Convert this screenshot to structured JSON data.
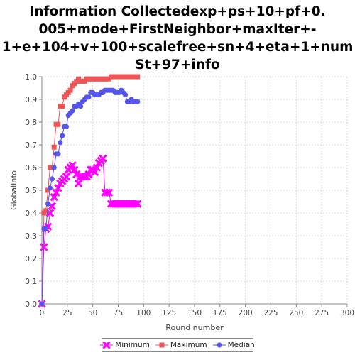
{
  "chart_data": {
    "type": "line",
    "title": "Information Collectedexp+ps+10+pf+0.\n005+mode+FirstNeighbor+maxIter+-\n1+e+104+v+100+scalefree+sn+4+eta+1+num\nSt+97+info",
    "xlabel": "Round number",
    "ylabel": "GlobalInfo",
    "xlim": [
      0,
      300
    ],
    "ylim": [
      0,
      1.0
    ],
    "xticks": [
      "0",
      "25",
      "50",
      "75",
      "100",
      "125",
      "150",
      "175",
      "200",
      "225",
      "250",
      "275",
      "300"
    ],
    "yticks": [
      "0,0",
      "0,1",
      "0,2",
      "0,3",
      "0,4",
      "0,5",
      "0,6",
      "0,7",
      "0,8",
      "0,9",
      "1,0"
    ],
    "grid": true,
    "legend_position": "bottom",
    "series": [
      {
        "name": "Minimum",
        "color": "#ff00ff",
        "marker": "x",
        "x": [
          0,
          2,
          4,
          6,
          8,
          10,
          12,
          14,
          16,
          18,
          20,
          22,
          24,
          26,
          28,
          30,
          32,
          34,
          36,
          38,
          40,
          42,
          44,
          46,
          48,
          50,
          52,
          54,
          56,
          58,
          60,
          62,
          64,
          66,
          68,
          70,
          72,
          74,
          76,
          78,
          80,
          82,
          84,
          86,
          88,
          90,
          92,
          94
        ],
        "y": [
          0,
          0.25,
          0.33,
          0.34,
          0.4,
          0.43,
          0.47,
          0.49,
          0.51,
          0.53,
          0.54,
          0.55,
          0.56,
          0.59,
          0.6,
          0.61,
          0.59,
          0.57,
          0.53,
          0.56,
          0.56,
          0.56,
          0.56,
          0.57,
          0.59,
          0.59,
          0.58,
          0.6,
          0.62,
          0.63,
          0.64,
          0.49,
          0.49,
          0.49,
          0.44,
          0.44,
          0.44,
          0.44,
          0.44,
          0.44,
          0.44,
          0.44,
          0.44,
          0.44,
          0.44,
          0.44,
          0.44,
          0.44
        ]
      },
      {
        "name": "Maximum",
        "color": "#ee5555",
        "marker": "square",
        "x": [
          0,
          2,
          4,
          6,
          8,
          10,
          12,
          14,
          16,
          18,
          20,
          22,
          24,
          26,
          28,
          30,
          32,
          34,
          36,
          38,
          40,
          42,
          44,
          46,
          48,
          50,
          52,
          54,
          56,
          58,
          60,
          62,
          64,
          66,
          68,
          70,
          72,
          74,
          76,
          78,
          80,
          82,
          84,
          86,
          88,
          90,
          92,
          94
        ],
        "y": [
          0,
          0.4,
          0.41,
          0.5,
          0.6,
          0.6,
          0.69,
          0.79,
          0.79,
          0.87,
          0.87,
          0.91,
          0.92,
          0.93,
          0.94,
          0.96,
          0.97,
          0.98,
          0.99,
          0.98,
          0.98,
          0.98,
          0.99,
          0.99,
          0.99,
          0.99,
          0.99,
          0.99,
          0.99,
          0.99,
          0.99,
          0.99,
          0.99,
          0.99,
          1.0,
          1.0,
          1.0,
          1.0,
          1.0,
          1.0,
          1.0,
          1.0,
          1.0,
          1.0,
          1.0,
          1.0,
          1.0,
          1.0
        ]
      },
      {
        "name": "Median",
        "color": "#5555ee",
        "marker": "circle",
        "x": [
          0,
          2,
          4,
          6,
          8,
          10,
          12,
          14,
          16,
          18,
          20,
          22,
          24,
          26,
          28,
          30,
          32,
          34,
          36,
          38,
          40,
          42,
          44,
          46,
          48,
          50,
          52,
          54,
          56,
          58,
          60,
          62,
          64,
          66,
          68,
          70,
          72,
          74,
          76,
          78,
          80,
          82,
          84,
          86,
          88,
          90,
          92,
          94
        ],
        "y": [
          0,
          0.33,
          0.33,
          0.44,
          0.51,
          0.55,
          0.6,
          0.66,
          0.66,
          0.71,
          0.74,
          0.78,
          0.78,
          0.83,
          0.84,
          0.85,
          0.87,
          0.87,
          0.88,
          0.87,
          0.89,
          0.9,
          0.91,
          0.91,
          0.93,
          0.93,
          0.92,
          0.92,
          0.92,
          0.93,
          0.93,
          0.94,
          0.94,
          0.94,
          0.94,
          0.94,
          0.93,
          0.93,
          0.93,
          0.94,
          0.93,
          0.92,
          0.89,
          0.89,
          0.9,
          0.89,
          0.89,
          0.89
        ]
      }
    ]
  }
}
